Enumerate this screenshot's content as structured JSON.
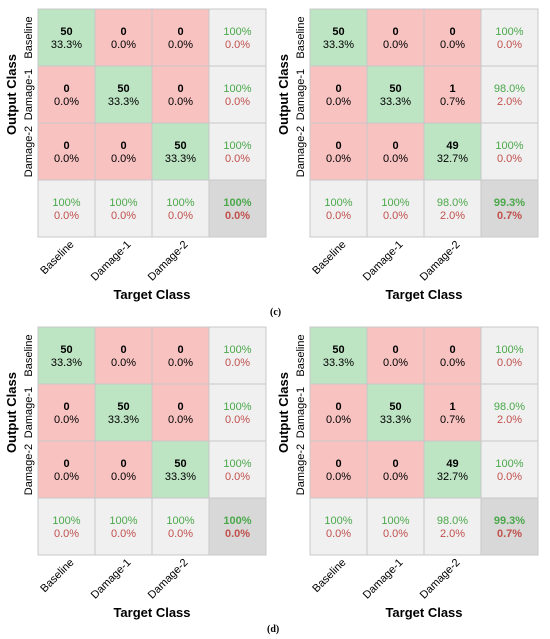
{
  "panel_tags": [
    "(c)",
    "(d)"
  ],
  "chart_data": [
    {
      "type": "heatmap",
      "xlabel": "Target Class",
      "ylabel": "Output Class",
      "classes": [
        "Baseline",
        "Damage-1",
        "Damage-2"
      ],
      "matrix": [
        [
          50,
          0,
          0
        ],
        [
          0,
          50,
          0
        ],
        [
          0,
          0,
          50
        ]
      ],
      "matrix_percent": [
        [
          "33.3%",
          "0.0%",
          "0.0%"
        ],
        [
          "0.0%",
          "33.3%",
          "0.0%"
        ],
        [
          "0.0%",
          "0.0%",
          "33.3%"
        ]
      ],
      "row_summary": [
        [
          "100%",
          "0.0%"
        ],
        [
          "100%",
          "0.0%"
        ],
        [
          "100%",
          "0.0%"
        ]
      ],
      "col_summary": [
        [
          "100%",
          "0.0%"
        ],
        [
          "100%",
          "0.0%"
        ],
        [
          "100%",
          "0.0%"
        ]
      ],
      "overall": [
        "100%",
        "0.0%"
      ]
    },
    {
      "type": "heatmap",
      "xlabel": "Target Class",
      "ylabel": "Output Class",
      "classes": [
        "Baseline",
        "Damage-1",
        "Damage-2"
      ],
      "matrix": [
        [
          50,
          0,
          0
        ],
        [
          0,
          50,
          1
        ],
        [
          0,
          0,
          49
        ]
      ],
      "matrix_percent": [
        [
          "33.3%",
          "0.0%",
          "0.0%"
        ],
        [
          "0.0%",
          "33.3%",
          "0.7%"
        ],
        [
          "0.0%",
          "0.0%",
          "32.7%"
        ]
      ],
      "row_summary": [
        [
          "100%",
          "0.0%"
        ],
        [
          "98.0%",
          "2.0%"
        ],
        [
          "100%",
          "0.0%"
        ]
      ],
      "col_summary": [
        [
          "100%",
          "0.0%"
        ],
        [
          "100%",
          "0.0%"
        ],
        [
          "98.0%",
          "2.0%"
        ]
      ],
      "overall": [
        "99.3%",
        "0.7%"
      ]
    },
    {
      "type": "heatmap",
      "xlabel": "Target Class",
      "ylabel": "Output Class",
      "classes": [
        "Baseline",
        "Damage-1",
        "Damage-2"
      ],
      "matrix": [
        [
          50,
          0,
          0
        ],
        [
          0,
          50,
          0
        ],
        [
          0,
          0,
          50
        ]
      ],
      "matrix_percent": [
        [
          "33.3%",
          "0.0%",
          "0.0%"
        ],
        [
          "0.0%",
          "33.3%",
          "0.0%"
        ],
        [
          "0.0%",
          "0.0%",
          "33.3%"
        ]
      ],
      "row_summary": [
        [
          "100%",
          "0.0%"
        ],
        [
          "100%",
          "0.0%"
        ],
        [
          "100%",
          "0.0%"
        ]
      ],
      "col_summary": [
        [
          "100%",
          "0.0%"
        ],
        [
          "100%",
          "0.0%"
        ],
        [
          "100%",
          "0.0%"
        ]
      ],
      "overall": [
        "100%",
        "0.0%"
      ]
    },
    {
      "type": "heatmap",
      "xlabel": "Target Class",
      "ylabel": "Output Class",
      "classes": [
        "Baseline",
        "Damage-1",
        "Damage-2"
      ],
      "matrix": [
        [
          50,
          0,
          0
        ],
        [
          0,
          50,
          1
        ],
        [
          0,
          0,
          49
        ]
      ],
      "matrix_percent": [
        [
          "33.3%",
          "0.0%",
          "0.0%"
        ],
        [
          "0.0%",
          "33.3%",
          "0.7%"
        ],
        [
          "0.0%",
          "0.0%",
          "32.7%"
        ]
      ],
      "row_summary": [
        [
          "100%",
          "0.0%"
        ],
        [
          "98.0%",
          "2.0%"
        ],
        [
          "100%",
          "0.0%"
        ]
      ],
      "col_summary": [
        [
          "100%",
          "0.0%"
        ],
        [
          "100%",
          "0.0%"
        ],
        [
          "98.0%",
          "2.0%"
        ]
      ],
      "overall": [
        "99.3%",
        "0.7%"
      ]
    }
  ],
  "colors": {
    "correct_cell": "#bde5c3",
    "incorrect_cell": "#f7c2c0",
    "summary_cell": "#f0f0f0",
    "overall_cell": "#d8d8d8",
    "grid_line": "#c8c8c8",
    "good_text": "#4aa84a",
    "bad_text": "#c0504d"
  }
}
